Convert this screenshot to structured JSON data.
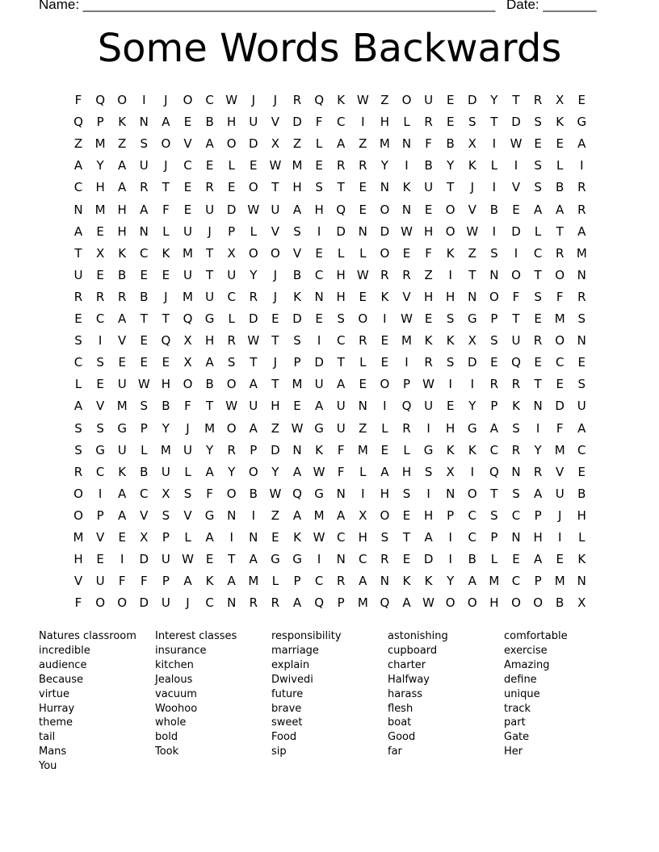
{
  "header": {
    "name_label": "Name: ______________________________________________________",
    "date_label": "Date: _______"
  },
  "title": "Some Words Backwards",
  "grid": [
    "FQOIJOCWJJRQKWZOUEDYTRXE",
    "QPKNAEBHUVDFCIHLRESTDSKG",
    "ZMZSOVAODXZLAZMNFBXIWEEA",
    "AYAUJCELEWMERRYIBYKLISLI",
    "CHARTEREOTHSTENKUTJIVSBR",
    "NMHAFEUDWUAHQEONEOVBEAAR",
    "AEHNLUJPLVSIDNDWHOWIDLTA",
    "TXKCKMTXOOVELLOEFKZSICRM",
    "UEBEEUTUYJBCHWRRZITNOTON",
    "RRRBJMUCRJKNHEKVHHNOFSFR",
    "ECATTQGLDEDESOIWESGPTEMS",
    "SIVEQXHRWTSICREMKKXSURON",
    "CSEEEXASTJPDTLEIRSDEQECE",
    "LEUWHOBOATMUAEOPWIIRRTES",
    "AVMSBFTWUHEAUNIQUEYPKNDU",
    "SSGPYJMOAZWGUZLRIHGASIFA",
    "SGULMUYRPDNKFMELGKKCRYMC",
    "RCKBULAYOYAWFLAHSXIQNRVE",
    "OIACXSFOBWQGNIHSINOTSAUB",
    "OPAVSVGNIZAMAXOEHPCSCPJH",
    "MVEXPLAINEKWCHSTAICPNHIL",
    "HEIDUWETAGGINCREDIBLEAEK",
    "VUFFPAKAMLPCRANKKYAMCPMN",
    "FOODUJCNRRAQPMQAWOOHOOBX"
  ],
  "word_columns": [
    [
      "Natures classroom",
      "incredible",
      "audience",
      "Because",
      "virtue",
      "Hurray",
      "theme",
      "tail",
      "Mans",
      "You"
    ],
    [
      "Interest classes",
      "insurance",
      "kitchen",
      "Jealous",
      "vacuum",
      "Woohoo",
      "whole",
      "bold",
      "Took"
    ],
    [
      "responsibility",
      "marriage",
      "explain",
      "Dwivedi",
      "future",
      "brave",
      "sweet",
      "Food",
      "sip"
    ],
    [
      "astonishing",
      "cupboard",
      "charter",
      "Halfway",
      "harass",
      "flesh",
      "boat",
      "Good",
      "far"
    ],
    [
      "comfortable",
      "exercise",
      "Amazing",
      "define",
      "unique",
      "track",
      "part",
      "Gate",
      "Her"
    ]
  ]
}
